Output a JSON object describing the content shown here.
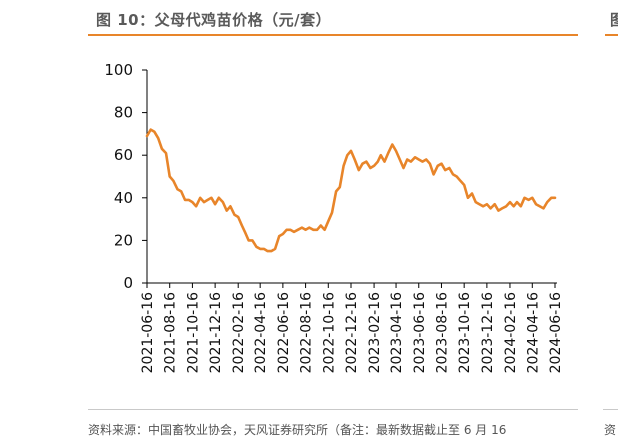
{
  "header": {
    "title": "图 10：父母代鸡苗价格（元/套）",
    "right_cut_title": "图"
  },
  "footer": {
    "source": "资料来源：中国畜牧业协会，天风证券研究所（备注：最新数据截止至 6 月 16",
    "right_cut_source": "资"
  },
  "colors": {
    "series": "#e8852a",
    "rule": "#e8852a",
    "axis": "#000000"
  },
  "chart_data": {
    "type": "line",
    "title": "父母代鸡苗价格（元/套）",
    "xlabel": "",
    "ylabel": "",
    "ylim": [
      0,
      100
    ],
    "yticks": [
      0,
      20,
      40,
      60,
      80,
      100
    ],
    "xticks": [
      "2021-06-16",
      "2021-08-16",
      "2021-10-16",
      "2021-12-16",
      "2022-02-16",
      "2022-04-16",
      "2022-06-16",
      "2022-08-16",
      "2022-10-16",
      "2022-12-16",
      "2023-02-16",
      "2023-04-16",
      "2023-06-16",
      "2023-08-16",
      "2023-10-16",
      "2023-12-16",
      "2024-02-16",
      "2024-04-16",
      "2024-06-16"
    ],
    "grid": false,
    "legend": "none",
    "series": [
      {
        "name": "",
        "x": [
          "2021-06-16",
          "2021-06-26",
          "2021-07-06",
          "2021-07-16",
          "2021-07-26",
          "2021-08-06",
          "2021-08-16",
          "2021-08-26",
          "2021-09-06",
          "2021-09-16",
          "2021-09-26",
          "2021-10-06",
          "2021-10-16",
          "2021-10-26",
          "2021-11-06",
          "2021-11-16",
          "2021-11-26",
          "2021-12-06",
          "2021-12-16",
          "2021-12-26",
          "2022-01-06",
          "2022-01-16",
          "2022-01-26",
          "2022-02-06",
          "2022-02-16",
          "2022-02-26",
          "2022-03-06",
          "2022-03-16",
          "2022-03-26",
          "2022-04-06",
          "2022-04-16",
          "2022-04-26",
          "2022-05-06",
          "2022-05-16",
          "2022-05-26",
          "2022-06-06",
          "2022-06-16",
          "2022-06-26",
          "2022-07-06",
          "2022-07-16",
          "2022-07-26",
          "2022-08-06",
          "2022-08-16",
          "2022-08-26",
          "2022-09-06",
          "2022-09-16",
          "2022-09-26",
          "2022-10-06",
          "2022-10-16",
          "2022-10-26",
          "2022-11-06",
          "2022-11-16",
          "2022-11-26",
          "2022-12-06",
          "2022-12-16",
          "2022-12-26",
          "2023-01-06",
          "2023-01-16",
          "2023-01-26",
          "2023-02-06",
          "2023-02-16",
          "2023-02-26",
          "2023-03-06",
          "2023-03-16",
          "2023-03-26",
          "2023-04-06",
          "2023-04-16",
          "2023-04-26",
          "2023-05-06",
          "2023-05-16",
          "2023-05-26",
          "2023-06-06",
          "2023-06-16",
          "2023-06-26",
          "2023-07-06",
          "2023-07-16",
          "2023-07-26",
          "2023-08-06",
          "2023-08-16",
          "2023-08-26",
          "2023-09-06",
          "2023-09-16",
          "2023-09-26",
          "2023-10-06",
          "2023-10-16",
          "2023-10-26",
          "2023-11-06",
          "2023-11-16",
          "2023-11-26",
          "2023-12-06",
          "2023-12-16",
          "2023-12-26",
          "2024-01-06",
          "2024-01-16",
          "2024-01-26",
          "2024-02-06",
          "2024-02-16",
          "2024-02-26",
          "2024-03-06",
          "2024-03-16",
          "2024-03-26",
          "2024-04-06",
          "2024-04-16",
          "2024-04-26",
          "2024-05-06",
          "2024-05-16",
          "2024-05-26",
          "2024-06-06",
          "2024-06-16"
        ],
        "values": [
          69,
          72,
          71,
          68,
          63,
          61,
          50,
          48,
          44,
          43,
          39,
          39,
          38,
          36,
          40,
          38,
          39,
          40,
          37,
          40,
          38,
          34,
          36,
          32,
          31,
          27,
          24,
          20,
          20,
          17,
          16,
          16,
          15,
          15,
          16,
          22,
          23,
          25,
          25,
          24,
          25,
          26,
          25,
          26,
          25,
          25,
          27,
          25,
          29,
          33,
          43,
          45,
          55,
          60,
          62,
          58,
          53,
          56,
          57,
          54,
          55,
          57,
          60,
          57,
          61,
          65,
          62,
          58,
          54,
          58,
          57,
          59,
          58,
          57,
          58,
          56,
          51,
          55,
          56,
          53,
          54,
          51,
          50,
          48,
          46,
          40,
          42,
          38,
          37,
          36,
          37,
          35,
          37,
          34,
          35,
          36,
          38,
          36,
          38,
          36,
          40,
          39,
          40,
          37,
          36,
          35,
          38,
          40,
          40
        ]
      }
    ]
  }
}
